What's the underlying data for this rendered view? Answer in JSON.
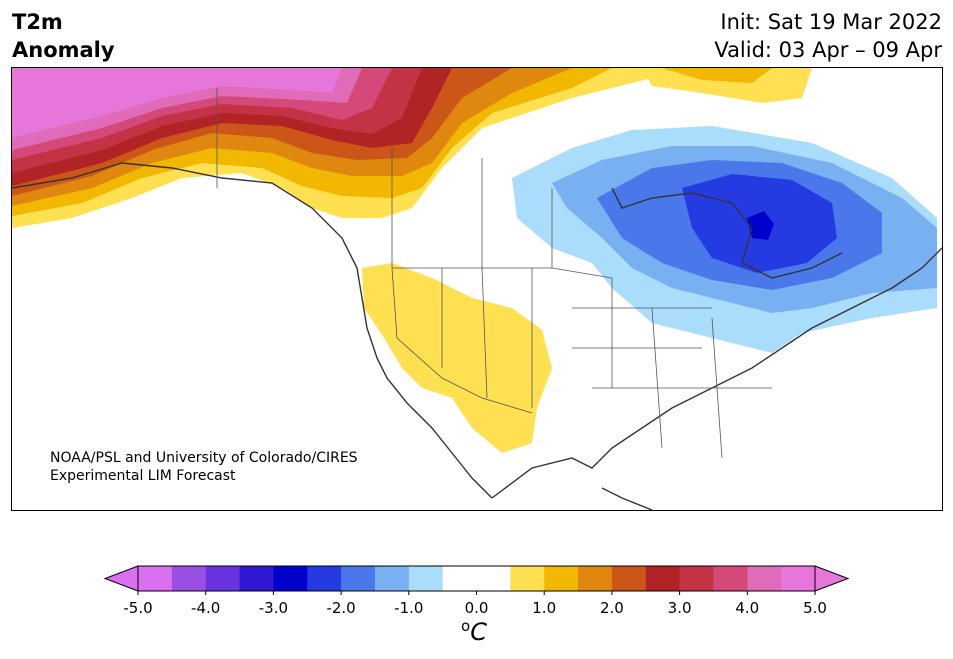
{
  "header": {
    "title_line1": "T2m",
    "title_line2": "Anomaly",
    "init": "Init: Sat 19 Mar 2022",
    "valid": "Valid: 03 Apr – 09 Apr"
  },
  "credit": {
    "line1": "NOAA/PSL and University of Colorado/CIRES",
    "line2": "Experimental LIM Forecast"
  },
  "colorbar": {
    "unit_base": "C",
    "unit_sup": "o",
    "ticks": [
      "-5.0",
      "-4.0",
      "-3.0",
      "-2.0",
      "-1.0",
      "0.0",
      "1.0",
      "2.0",
      "3.0",
      "4.0",
      "5.0"
    ],
    "colors": [
      "#da70f0",
      "#9a4fe3",
      "#6a33e0",
      "#3118d3",
      "#0000cd",
      "#233be0",
      "#4a78ea",
      "#79b0f2",
      "#aadcfb",
      "#ffffff",
      "#ffffff",
      "#ffe050",
      "#f2b700",
      "#e0870f",
      "#cc5518",
      "#b22325",
      "#c43246",
      "#d4497a",
      "#e06bb8",
      "#e676da"
    ],
    "under_color": "#da70f0",
    "over_color": "#e676da"
  }
}
